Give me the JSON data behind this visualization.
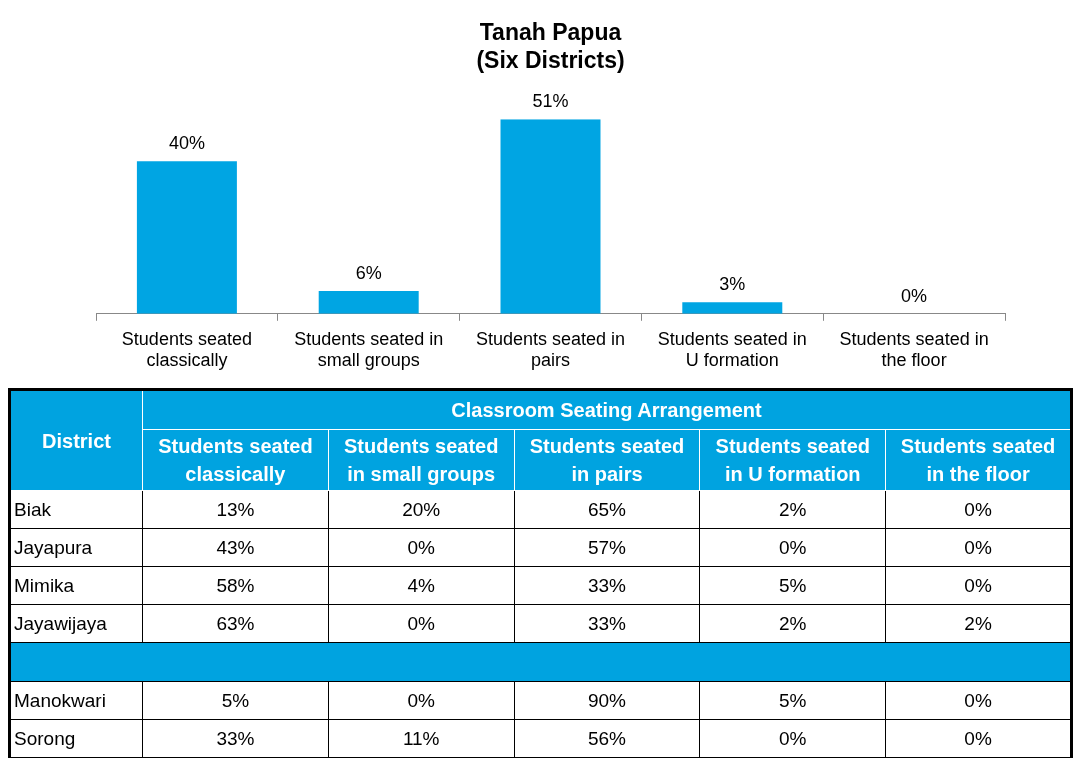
{
  "chart_data": [
    {
      "type": "bar",
      "title": "Tanah Papua",
      "subtitle": "(Six Districts)",
      "categories": [
        "Students seated classically",
        "Students seated in small groups",
        "Students seated in pairs",
        "Students seated in U formation",
        "Students seated in the floor"
      ],
      "values": [
        40,
        6,
        51,
        3,
        0
      ],
      "value_labels": [
        "40%",
        "6%",
        "51%",
        "3%",
        "0%"
      ],
      "color": "#00a5e3",
      "tick_labels": "x"
    },
    {
      "type": "heatmap",
      "title": "Classroom Seating Arrangement",
      "ylabel": "District",
      "categories": [
        "Students seated classically",
        "Students seated in small groups",
        "Students seated in pairs",
        "Students seated in U formation",
        "Students seated in the floor"
      ],
      "y_categories": [
        "Biak",
        "Jayapura",
        "Mimika",
        "Jayawijaya"
      ],
      "cells": [
        [
          13,
          20,
          65,
          2,
          0
        ],
        [
          43,
          0,
          57,
          0,
          0
        ],
        [
          58,
          4,
          33,
          5,
          0
        ],
        [
          63,
          0,
          33,
          2,
          2
        ]
      ],
      "cell_labels": [
        [
          "13%",
          "20%",
          "65%",
          "2%",
          "0%"
        ],
        [
          "43%",
          "0%",
          "57%",
          "0%",
          "0%"
        ],
        [
          "58%",
          "4%",
          "33%",
          "5%",
          "0%"
        ],
        [
          "63%",
          "0%",
          "33%",
          "2%",
          "2%"
        ]
      ]
    },
    {
      "type": "heatmap",
      "tick_labels": "y",
      "categories": [
        null,
        null,
        null,
        null,
        null
      ],
      "y_categories": [
        "Manokwari",
        "Sorong"
      ],
      "cells": [
        [
          5,
          0,
          90,
          5,
          0
        ],
        [
          33,
          11,
          56,
          0,
          0
        ]
      ],
      "cell_labels": [
        [
          "5%",
          "0%",
          "90%",
          "5%",
          "0%"
        ],
        [
          "33%",
          "11%",
          "56%",
          "0%",
          "0%"
        ]
      ]
    }
  ]
}
